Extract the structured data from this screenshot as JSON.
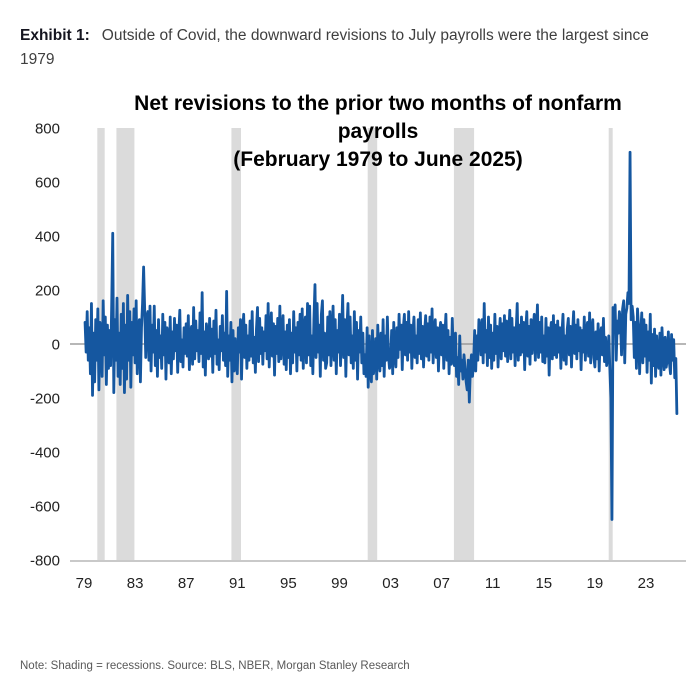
{
  "header": {
    "exhibit_label": "Exhibit 1:",
    "headline": "Outside of Covid, the downward revisions to July payrolls were the largest since 1979"
  },
  "note": "Note: Shading = recessions. Source: BLS, NBER, Morgan Stanley Research",
  "chart_data": {
    "type": "line",
    "title": "Net revisions to the prior two months of nonfarm payrolls (February 1979 to June 2025)",
    "title_lines": [
      "Net revisions to the prior two months of nonfarm",
      "payrolls",
      "(February 1979 to June 2025)"
    ],
    "xlabel": "",
    "ylabel": "",
    "ylim": [
      -800,
      800
    ],
    "y_ticks": [
      800,
      600,
      400,
      200,
      0,
      -200,
      -400,
      -600,
      -800
    ],
    "x_ticks": [
      {
        "year": 1979,
        "label": "79"
      },
      {
        "year": 1983,
        "label": "83"
      },
      {
        "year": 1987,
        "label": "87"
      },
      {
        "year": 1991,
        "label": "91"
      },
      {
        "year": 1995,
        "label": "95"
      },
      {
        "year": 1999,
        "label": "99"
      },
      {
        "year": 2003,
        "label": "03"
      },
      {
        "year": 2007,
        "label": "07"
      },
      {
        "year": 2011,
        "label": "11"
      },
      {
        "year": 2015,
        "label": "15"
      },
      {
        "year": 2019,
        "label": "19"
      },
      {
        "year": 2023,
        "label": "23"
      }
    ],
    "series_start": "1979-02",
    "series_end": "2025-06",
    "frequency": "monthly",
    "grid": false,
    "legend": false,
    "line_color": "#1557A0",
    "recession_color": "#DBDBDB",
    "zero_line_color": "#8C8C8C",
    "axis_line_color": "#C9C9C9",
    "recessions": [
      {
        "start": 1980.04,
        "end": 1980.62
      },
      {
        "start": 1981.54,
        "end": 1982.95
      },
      {
        "start": 1990.54,
        "end": 1991.29
      },
      {
        "start": 2001.21,
        "end": 2001.95
      },
      {
        "start": 2007.96,
        "end": 2009.54
      },
      {
        "start": 2020.08,
        "end": 2020.37
      }
    ],
    "values": [
      80,
      -30,
      120,
      -60,
      60,
      -110,
      150,
      -190,
      40,
      -140,
      90,
      -60,
      130,
      -170,
      80,
      20,
      -120,
      160,
      -40,
      100,
      -150,
      70,
      -90,
      50,
      -80,
      140,
      410,
      -180,
      90,
      -60,
      170,
      -120,
      40,
      -150,
      110,
      -90,
      150,
      -180,
      70,
      -130,
      180,
      -60,
      120,
      -160,
      80,
      -40,
      130,
      -70,
      160,
      -110,
      50,
      90,
      -140,
      60,
      150,
      285,
      130,
      -50,
      100,
      120,
      -60,
      140,
      -100,
      70,
      -30,
      140,
      -80,
      50,
      -120,
      90,
      -50,
      30,
      -90,
      110,
      -40,
      80,
      -130,
      60,
      20,
      -70,
      100,
      -110,
      45,
      -55,
      95,
      -25,
      70,
      -105,
      35,
      125,
      -65,
      15,
      -85,
      60,
      -35,
      75,
      -45,
      105,
      -95,
      25,
      65,
      -75,
      135,
      -55,
      85,
      -25,
      50,
      -65,
      115,
      -35,
      190,
      -85,
      45,
      -115,
      75,
      25,
      -55,
      95,
      -45,
      55,
      -105,
      85,
      -35,
      125,
      -75,
      15,
      -95,
      65,
      -25,
      105,
      -60,
      40,
      -80,
      195,
      -120,
      30,
      -60,
      80,
      -140,
      50,
      -100,
      20,
      -70,
      -110,
      60,
      -30,
      90,
      -130,
      40,
      110,
      -50,
      70,
      -90,
      30,
      -60,
      85,
      -45,
      120,
      -70,
      25,
      -105,
      55,
      135,
      -65,
      95,
      -35,
      60,
      -75,
      45,
      -25,
      105,
      -55,
      150,
      -85,
      35,
      115,
      -45,
      75,
      -115,
      65,
      -35,
      95,
      -65,
      140,
      -55,
      25,
      105,
      -75,
      45,
      -95,
      70,
      -50,
      90,
      -110,
      40,
      -70,
      120,
      -30,
      60,
      -100,
      80,
      -40,
      110,
      -60,
      130,
      -90,
      50,
      100,
      -70,
      150,
      -40,
      140,
      -80,
      30,
      -110,
      90,
      220,
      -50,
      150,
      -30,
      70,
      -120,
      110,
      160,
      -60,
      40,
      -90,
      -70,
      100,
      -40,
      120,
      -80,
      30,
      140,
      -60,
      90,
      -110,
      50,
      -30,
      110,
      -80,
      40,
      180,
      -50,
      90,
      -120,
      60,
      150,
      -40,
      100,
      -70,
      30,
      -90,
      120,
      -60,
      80,
      -130,
      50,
      -30,
      100,
      -70,
      40,
      -110,
      -40,
      -120,
      60,
      -160,
      30,
      -90,
      -140,
      50,
      -110,
      -60,
      20,
      -130,
      70,
      -50,
      -100,
      40,
      -80,
      90,
      -120,
      30,
      -60,
      100,
      -40,
      -90,
      -70,
      50,
      -110,
      80,
      -30,
      -85,
      60,
      -50,
      110,
      -20,
      70,
      -95,
      60,
      110,
      -40,
      80,
      -60,
      120,
      -30,
      70,
      -90,
      40,
      100,
      -50,
      30,
      -70,
      90,
      -35,
      115,
      -55,
      65,
      -85,
      45,
      105,
      -45,
      75,
      -60,
      100,
      -30,
      130,
      -70,
      40,
      90,
      -50,
      60,
      -100,
      35,
      80,
      -40,
      70,
      -90,
      30,
      110,
      -60,
      50,
      -110,
      25,
      -75,
      95,
      -55,
      -80,
      40,
      -120,
      -50,
      -150,
      30,
      -100,
      -60,
      -130,
      -40,
      -90,
      -140,
      -170,
      -60,
      -215,
      -90,
      -40,
      -120,
      -70,
      50,
      -100,
      30,
      -60,
      90,
      60,
      -40,
      90,
      -70,
      150,
      -30,
      50,
      -80,
      100,
      -50,
      70,
      -90,
      40,
      -60,
      110,
      -35,
      65,
      -85,
      30,
      95,
      -55,
      75,
      -25,
      105,
      -45,
      85,
      -65,
      35,
      125,
      -55,
      95,
      -30,
      60,
      -80,
      45,
      150,
      -60,
      70,
      -40,
      100,
      -30,
      80,
      -95,
      50,
      120,
      -45,
      65,
      -75,
      90,
      -35,
      55,
      110,
      -60,
      40,
      145,
      -50,
      80,
      -30,
      100,
      -65,
      30,
      -70,
      95,
      -45,
      60,
      -115,
      35,
      80,
      -55,
      105,
      -40,
      70,
      -50,
      85,
      -30,
      60,
      -90,
      40,
      110,
      -60,
      30,
      -75,
      55,
      95,
      -40,
      65,
      -85,
      45,
      120,
      -35,
      70,
      -55,
      90,
      -25,
      60,
      -95,
      50,
      -30,
      100,
      -60,
      35,
      80,
      -45,
      115,
      -70,
      40,
      90,
      -50,
      -85,
      45,
      -55,
      75,
      -100,
      30,
      60,
      -40,
      95,
      -65,
      25,
      -80,
      -45,
      30,
      -90,
      -200,
      -650,
      135,
      90,
      145,
      -60,
      85,
      40,
      120,
      85,
      -40,
      130,
      160,
      -70,
      110,
      133,
      190,
      150,
      710,
      90,
      140,
      100,
      -50,
      80,
      -90,
      130,
      60,
      -110,
      40,
      115,
      -70,
      90,
      -45,
      70,
      -105,
      45,
      -60,
      110,
      -145,
      35,
      -80,
      55,
      -120,
      30,
      -65,
      -90,
      40,
      -115,
      60,
      -30,
      -95,
      25,
      -86,
      -55,
      45,
      -70,
      -110,
      35,
      -60,
      16,
      -125,
      -54,
      -258
    ]
  }
}
